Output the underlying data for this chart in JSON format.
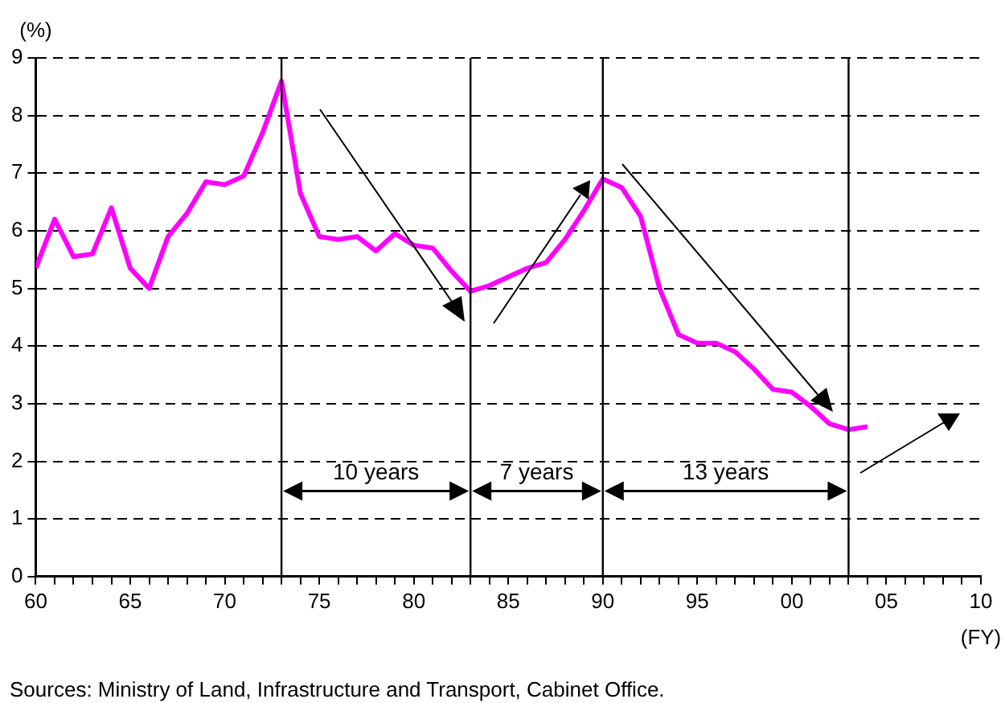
{
  "chart_data": {
    "type": "line",
    "ylabel": "(%)",
    "x": [
      1960,
      1961,
      1962,
      1963,
      1964,
      1965,
      1966,
      1967,
      1968,
      1969,
      1970,
      1971,
      1972,
      1973,
      1974,
      1975,
      1976,
      1977,
      1978,
      1979,
      1980,
      1981,
      1982,
      1983,
      1984,
      1985,
      1986,
      1987,
      1988,
      1989,
      1990,
      1991,
      1992,
      1993,
      1994,
      1995,
      1996,
      1997,
      1998,
      1999,
      2000,
      2001,
      2002,
      2003,
      2004
    ],
    "series": [
      {
        "color": "#ff00ff",
        "values": [
          5.35,
          6.2,
          5.55,
          5.6,
          6.4,
          5.35,
          5.0,
          5.9,
          6.3,
          6.85,
          6.8,
          6.95,
          7.7,
          8.6,
          6.65,
          5.9,
          5.85,
          5.9,
          5.65,
          5.95,
          5.75,
          5.7,
          5.3,
          4.95,
          5.05,
          5.2,
          5.35,
          5.45,
          5.85,
          6.35,
          6.9,
          6.75,
          6.25,
          5.0,
          4.2,
          4.05,
          4.05,
          3.9,
          3.6,
          3.25,
          3.2,
          2.95,
          2.65,
          2.55,
          2.6
        ]
      }
    ],
    "xlim": [
      1960,
      2010
    ],
    "xticks": [
      {
        "value": 1960,
        "label": "60"
      },
      {
        "value": 1961,
        "label": null
      },
      {
        "value": 1962,
        "label": null
      },
      {
        "value": 1963,
        "label": null
      },
      {
        "value": 1964,
        "label": null
      },
      {
        "value": 1965,
        "label": "65"
      },
      {
        "value": 1966,
        "label": null
      },
      {
        "value": 1967,
        "label": null
      },
      {
        "value": 1968,
        "label": null
      },
      {
        "value": 1969,
        "label": null
      },
      {
        "value": 1970,
        "label": "70"
      },
      {
        "value": 1971,
        "label": null
      },
      {
        "value": 1972,
        "label": null
      },
      {
        "value": 1973,
        "label": null
      },
      {
        "value": 1974,
        "label": null
      },
      {
        "value": 1975,
        "label": "75"
      },
      {
        "value": 1976,
        "label": null
      },
      {
        "value": 1977,
        "label": null
      },
      {
        "value": 1978,
        "label": null
      },
      {
        "value": 1979,
        "label": null
      },
      {
        "value": 1980,
        "label": "80"
      },
      {
        "value": 1981,
        "label": null
      },
      {
        "value": 1982,
        "label": null
      },
      {
        "value": 1983,
        "label": null
      },
      {
        "value": 1984,
        "label": null
      },
      {
        "value": 1985,
        "label": "85"
      },
      {
        "value": 1986,
        "label": null
      },
      {
        "value": 1987,
        "label": null
      },
      {
        "value": 1988,
        "label": null
      },
      {
        "value": 1989,
        "label": null
      },
      {
        "value": 1990,
        "label": "90"
      },
      {
        "value": 1991,
        "label": null
      },
      {
        "value": 1992,
        "label": null
      },
      {
        "value": 1993,
        "label": null
      },
      {
        "value": 1994,
        "label": null
      },
      {
        "value": 1995,
        "label": "95"
      },
      {
        "value": 1996,
        "label": null
      },
      {
        "value": 1997,
        "label": null
      },
      {
        "value": 1998,
        "label": null
      },
      {
        "value": 1999,
        "label": null
      },
      {
        "value": 2000,
        "label": "00"
      },
      {
        "value": 2001,
        "label": null
      },
      {
        "value": 2002,
        "label": null
      },
      {
        "value": 2003,
        "label": null
      },
      {
        "value": 2004,
        "label": null
      },
      {
        "value": 2005,
        "label": "05"
      },
      {
        "value": 2006,
        "label": null
      },
      {
        "value": 2007,
        "label": null
      },
      {
        "value": 2008,
        "label": null
      },
      {
        "value": 2009,
        "label": null
      },
      {
        "value": 2010,
        "label": "10"
      }
    ],
    "ylim": [
      0,
      9
    ],
    "yticks": [
      0,
      1,
      2,
      3,
      4,
      5,
      6,
      7,
      8,
      9
    ],
    "grid": "y",
    "legend": false,
    "marker": "none",
    "line_style": "solid",
    "ref_lines": [
      {
        "axis": "x",
        "value": 1973
      },
      {
        "axis": "x",
        "value": 1983
      },
      {
        "axis": "x",
        "value": 1990
      },
      {
        "axis": "x",
        "value": 2003
      }
    ],
    "annotations": [
      "10 years",
      "7 years",
      "13 years",
      "(FY)",
      "Sources: Ministry of Land, Infrastructure and Transport, Cabinet Office."
    ]
  }
}
